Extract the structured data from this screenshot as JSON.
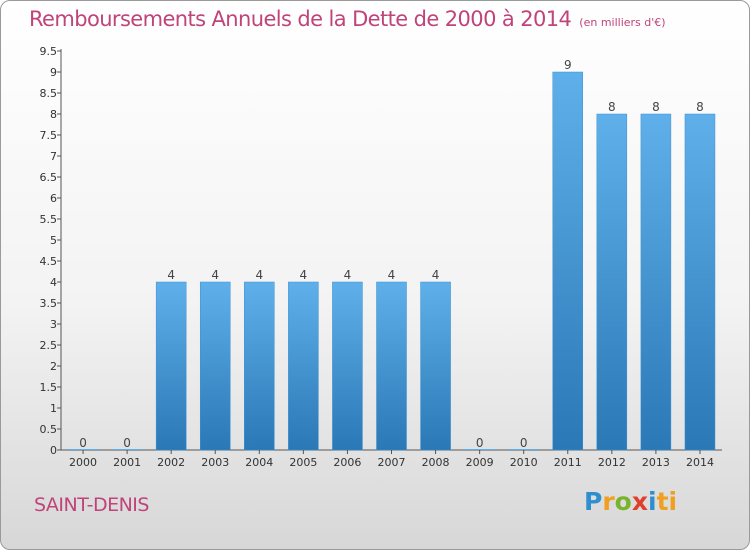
{
  "title": "Remboursements Annuels de la Dette de 2000 à 2014",
  "unit": "(en milliers d'€)",
  "place": "SAINT-DENIS",
  "logo_text": "Proxiti",
  "colors": {
    "title": "#c0437a",
    "bar_top": "#5fb0ea",
    "bar_bottom": "#2a78b6",
    "axis": "#555555"
  },
  "chart_data": {
    "type": "bar",
    "title": "Remboursements Annuels de la Dette de 2000 à 2014",
    "categories": [
      "2000",
      "2001",
      "2002",
      "2003",
      "2004",
      "2005",
      "2006",
      "2007",
      "2008",
      "2009",
      "2010",
      "2011",
      "2012",
      "2013",
      "2014"
    ],
    "values": [
      0,
      0,
      4,
      4,
      4,
      4,
      4,
      4,
      4,
      0,
      0,
      9,
      8,
      8,
      8
    ],
    "value_labels": [
      "0",
      "0",
      "4",
      "4",
      "4",
      "4",
      "4",
      "4",
      "4",
      "0",
      "0",
      "9",
      "8",
      "8",
      "8"
    ],
    "y_ticks": [
      "0",
      "0.5",
      "1",
      "1.5",
      "2",
      "2.5",
      "3",
      "3.5",
      "4",
      "4.5",
      "5",
      "5.5",
      "6",
      "6.5",
      "7",
      "7.5",
      "8",
      "8.5",
      "9",
      "9.5"
    ],
    "ylim": [
      0,
      9.5
    ],
    "grid": false,
    "legend": "none"
  }
}
